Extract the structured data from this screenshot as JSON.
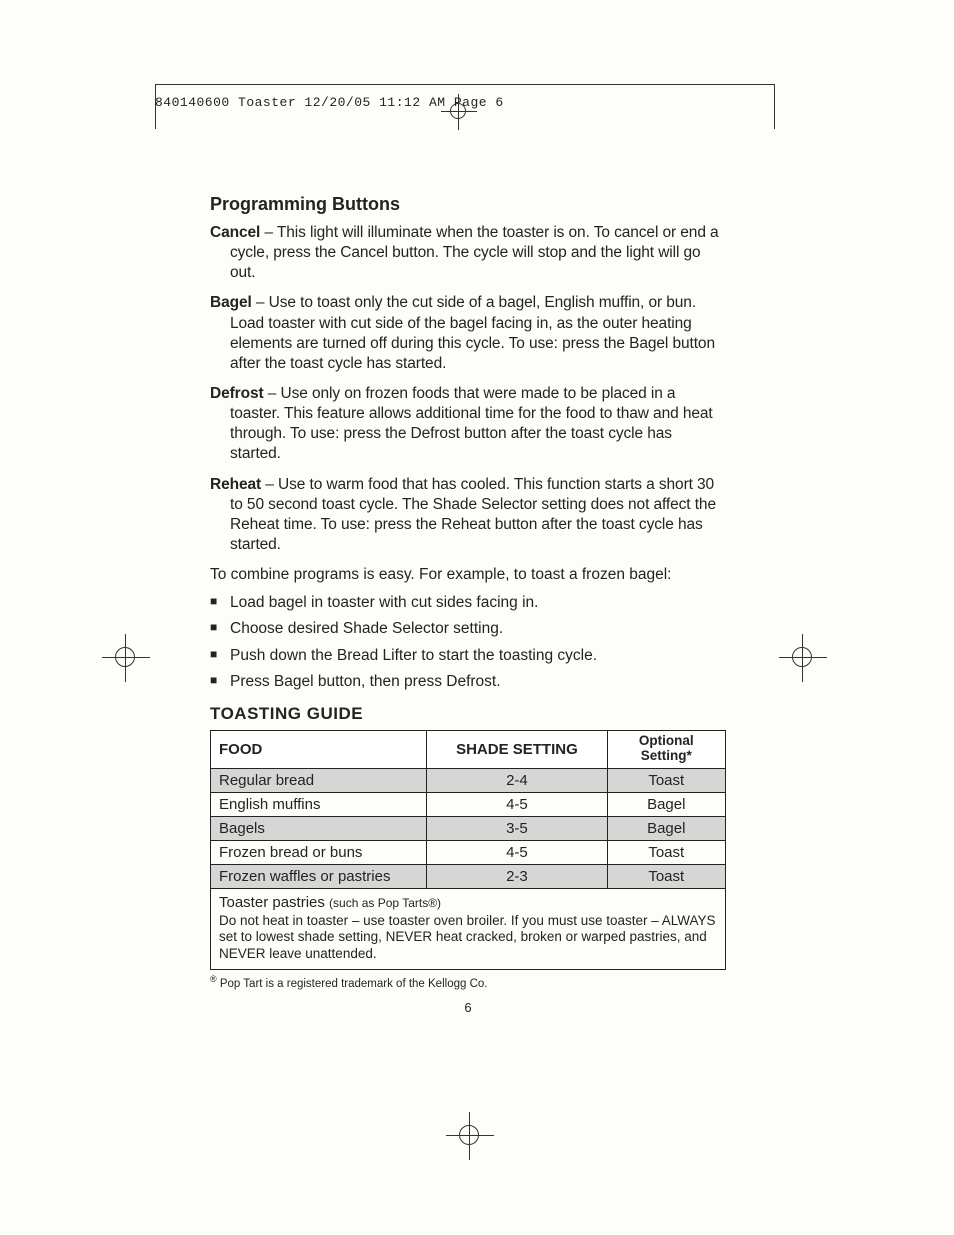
{
  "header_line": "840140600 Toaster  12/20/05  11:12 AM  Page 6",
  "section_title": "Programming Buttons",
  "defs": [
    {
      "term": "Cancel",
      "text": " – This light will illuminate when the toaster is on. To cancel or end a cycle, press the Cancel button. The cycle will stop and the light will go out."
    },
    {
      "term": "Bagel",
      "text": " – Use to toast only the cut side of a bagel, English muffin, or bun. Load toaster with cut side of the bagel facing in, as the outer heating elements are turned off during this cycle. To use: press the Bagel button after the toast cycle has started."
    },
    {
      "term": "Defrost",
      "text": " – Use only on frozen foods that were made to be placed in a toaster. This feature allows additional time for the food to thaw and heat through. To use: press the Defrost button after the toast cycle has started."
    },
    {
      "term": "Reheat",
      "text": " – Use to warm food that has cooled. This function starts a short 30 to 50 second toast cycle. The Shade Selector setting does not affect the Reheat time. To use:  press the Reheat button after the toast cycle has started."
    }
  ],
  "combine_intro": "To combine programs is easy. For example, to toast a frozen bagel:",
  "bullets": [
    "Load bagel in toaster with cut sides facing in.",
    "Choose desired Shade Selector setting.",
    "Push down the Bread Lifter to start the toasting cycle.",
    "Press Bagel button, then press Defrost."
  ],
  "guide_title": "TOASTING GUIDE",
  "table": {
    "headers": {
      "food": "FOOD",
      "shade": "SHADE SETTING",
      "optional": "Optional Setting*"
    },
    "rows": [
      {
        "food": "Regular bread",
        "shade": "2-4",
        "opt": "Toast",
        "shaded": true
      },
      {
        "food": "English muffins",
        "shade": "4-5",
        "opt": "Bagel",
        "shaded": false
      },
      {
        "food": "Bagels",
        "shade": "3-5",
        "opt": "Bagel",
        "shaded": true
      },
      {
        "food": "Frozen bread or buns",
        "shade": "4-5",
        "opt": "Toast",
        "shaded": false
      },
      {
        "food": "Frozen waffles or pastries",
        "shade": "2-3",
        "opt": "Toast",
        "shaded": true
      }
    ],
    "note_head": "Toaster pastries ",
    "note_sub": "(such as Pop Tarts®)",
    "note_body": "Do not heat in toaster – use toaster oven broiler. If you must use toaster – ALWAYS set to lowest shade setting, NEVER heat cracked, broken or warped pastries, and NEVER leave unattended."
  },
  "footnote": "Pop Tart is a registered trademark of the Kellogg Co.",
  "page_number": "6"
}
